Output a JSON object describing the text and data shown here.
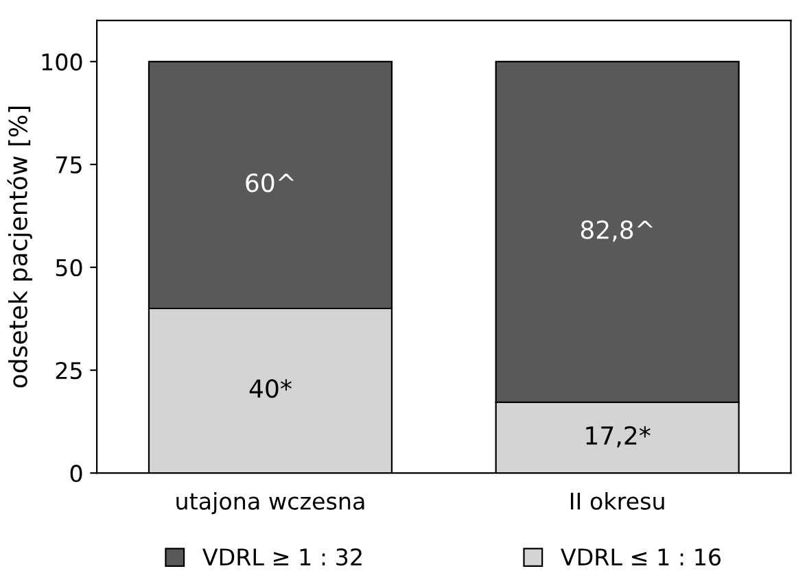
{
  "chart_data": {
    "type": "bar",
    "stacked": true,
    "ylabel": "odsetek pacjentów [%]",
    "categories": [
      "utajona wczesna",
      "II okresu"
    ],
    "series": [
      {
        "name": "VDRL ≤ 1 : 16",
        "color": "#d4d4d4",
        "values": [
          40,
          17.2
        ],
        "value_labels": [
          "40*",
          "17,2*"
        ]
      },
      {
        "name": "VDRL ≥ 1 : 32",
        "color": "#595959",
        "values": [
          60,
          82.8
        ],
        "value_labels": [
          "60^",
          "82,8^"
        ]
      }
    ],
    "ylim": [
      0,
      110
    ],
    "yticks": [
      0,
      25,
      50,
      75,
      100
    ],
    "grid": false,
    "legend": "bottom"
  }
}
